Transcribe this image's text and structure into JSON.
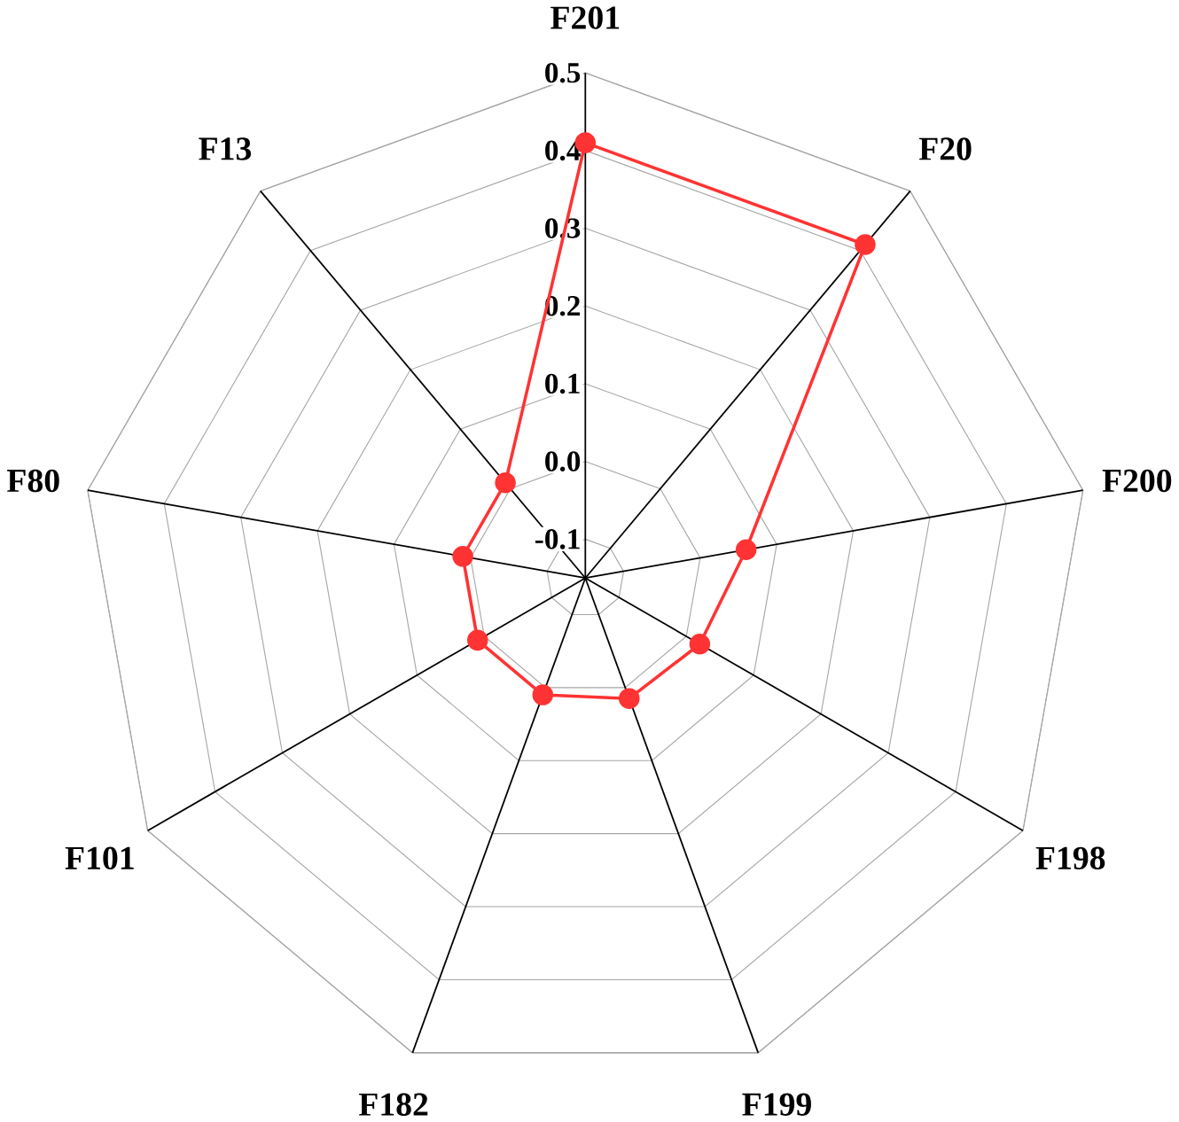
{
  "chart_data": {
    "type": "radar",
    "categories": [
      "F201",
      "F20",
      "F200",
      "F198",
      "F199",
      "F182",
      "F101",
      "F80",
      "F13"
    ],
    "series": [
      {
        "color": "#ff3333",
        "values": [
          0.41,
          0.41,
          0.06,
          0.02,
          0.015,
          0.01,
          0.01,
          0.01,
          0.01
        ]
      }
    ],
    "ylim": [
      -0.15,
      0.5
    ],
    "yticks": [
      -0.1,
      {
        "value": 0,
        "label": "0.0"
      },
      0.1,
      0.2,
      0.3,
      0.4,
      0.5
    ],
    "grid": true,
    "marker": "circle",
    "line_style": "solid"
  }
}
